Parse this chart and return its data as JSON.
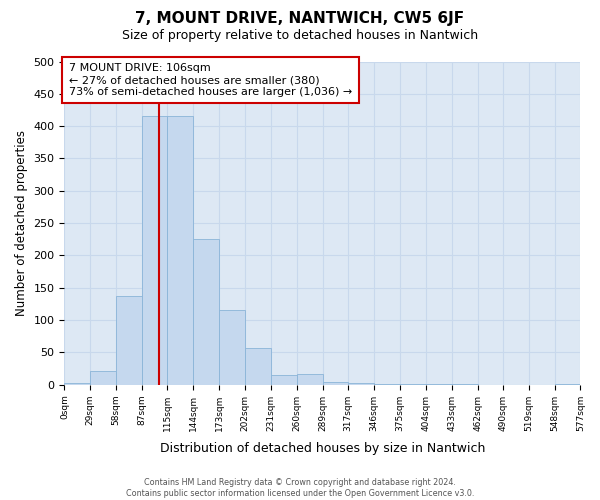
{
  "title": "7, MOUNT DRIVE, NANTWICH, CW5 6JF",
  "subtitle": "Size of property relative to detached houses in Nantwich",
  "xlabel": "Distribution of detached houses by size in Nantwich",
  "ylabel": "Number of detached properties",
  "annotation_line1": "7 MOUNT DRIVE: 106sqm",
  "annotation_line2": "← 27% of detached houses are smaller (380)",
  "annotation_line3": "73% of semi-detached houses are larger (1,036) →",
  "footer_line1": "Contains HM Land Registry data © Crown copyright and database right 2024.",
  "footer_line2": "Contains public sector information licensed under the Open Government Licence v3.0.",
  "property_size": 106,
  "bin_edges": [
    0,
    29,
    58,
    87,
    115,
    144,
    173,
    202,
    231,
    260,
    289,
    317,
    346,
    375,
    404,
    433,
    462,
    490,
    519,
    548,
    577
  ],
  "bar_heights": [
    2,
    22,
    138,
    415,
    415,
    225,
    115,
    57,
    15,
    17,
    5,
    2,
    1,
    1,
    1,
    1,
    0,
    0,
    0,
    1
  ],
  "bar_color": "#c5d8ee",
  "bar_edge_color": "#8ab4d8",
  "vline_color": "#cc0000",
  "annotation_box_facecolor": "#ffffff",
  "annotation_box_edgecolor": "#cc0000",
  "grid_color": "#c8d8ec",
  "plot_bg_color": "#dde8f4",
  "fig_bg_color": "#ffffff",
  "ylim": [
    0,
    500
  ],
  "yticks": [
    0,
    50,
    100,
    150,
    200,
    250,
    300,
    350,
    400,
    450,
    500
  ]
}
